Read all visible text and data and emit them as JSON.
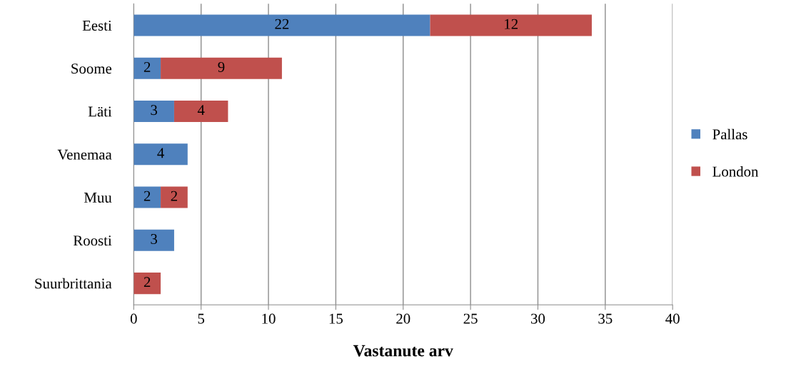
{
  "chart_data": {
    "type": "bar",
    "orientation": "horizontal",
    "stacked": true,
    "xlabel": "Vastanute arv",
    "categories": [
      "Eesti",
      "Soome",
      "Läti",
      "Venemaa",
      "Muu",
      "Roosti",
      "Suurbrittania"
    ],
    "series": [
      {
        "name": "Pallas",
        "color": "#4f81bd",
        "values": [
          22,
          2,
          3,
          4,
          2,
          3,
          null
        ]
      },
      {
        "name": "London",
        "color": "#c0504d",
        "values": [
          12,
          9,
          4,
          null,
          2,
          null,
          2
        ]
      }
    ],
    "xlim": [
      0,
      40
    ],
    "xticks": [
      0,
      5,
      10,
      15,
      20,
      25,
      30,
      35,
      40
    ],
    "grid": "x",
    "legend": "right",
    "data_labels": true
  }
}
